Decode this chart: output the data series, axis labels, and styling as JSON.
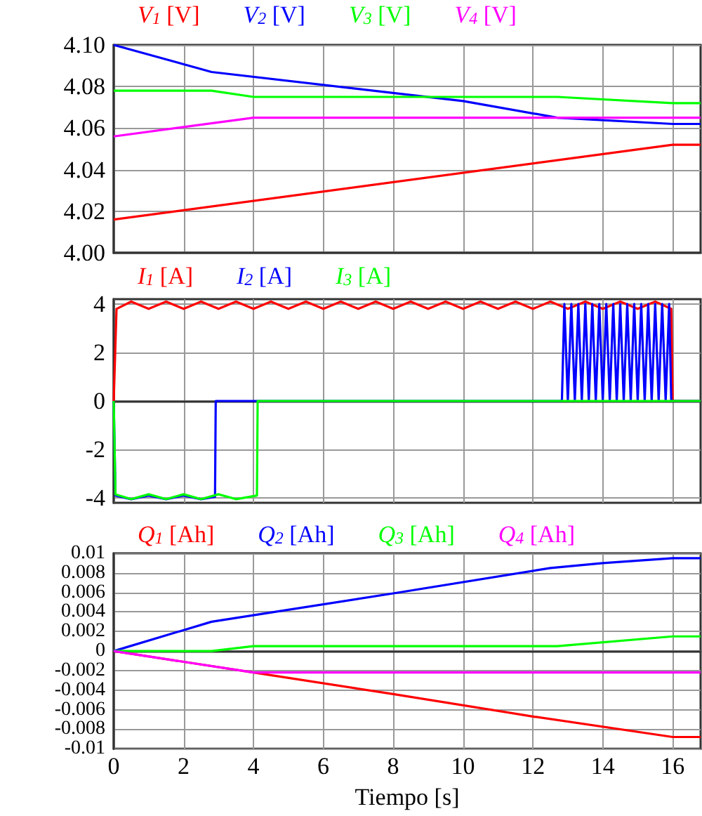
{
  "chart_data": [
    {
      "type": "line",
      "xlim": [
        0,
        16.8
      ],
      "xticks": [
        0,
        2,
        4,
        6,
        8,
        10,
        12,
        14,
        16
      ],
      "ylim": [
        4.0,
        4.1
      ],
      "yticks": [
        {
          "value": 4.0,
          "label": "4.00"
        },
        4.02,
        4.04,
        4.06,
        4.08,
        {
          "value": 4.1,
          "label": "4.10"
        }
      ],
      "grid": true,
      "legend": "top left",
      "tick_labels": "y",
      "series": [
        {
          "name": "V$_{1}$ [V]",
          "color": "#ff0000",
          "x": [
            0,
            16,
            16.8
          ],
          "values": [
            4.016,
            4.052,
            4.052
          ]
        },
        {
          "name": "V$_{2}$ [V]",
          "color": "#0000ff",
          "x": [
            0,
            2.8,
            10,
            12.7,
            16,
            16.8
          ],
          "values": [
            4.1,
            4.087,
            4.073,
            4.065,
            4.062,
            4.062
          ]
        },
        {
          "name": "V$_{3}$ [V]",
          "color": "#00ff00",
          "x": [
            0,
            2.8,
            4,
            12.7,
            16,
            16.8
          ],
          "values": [
            4.078,
            4.078,
            4.075,
            4.075,
            4.072,
            4.072
          ]
        },
        {
          "name": "V$_{4}$ [V]",
          "color": "#ff00ff",
          "x": [
            0,
            4,
            16.8
          ],
          "values": [
            4.056,
            4.065,
            4.065
          ]
        }
      ]
    },
    {
      "type": "line",
      "xlim": [
        0,
        16.8
      ],
      "xticks": [
        0,
        2,
        4,
        6,
        8,
        10,
        12,
        14,
        16
      ],
      "ylim": [
        -4.2,
        4.2
      ],
      "yticks": [
        -4,
        -2,
        0,
        2,
        4
      ],
      "grid": true,
      "legend": "top left",
      "tick_labels": "y",
      "series": [
        {
          "name": "I$_{1}$ [A]",
          "color": "#ff0000",
          "x": [
            0,
            0.08,
            0.5,
            1,
            1.5,
            2,
            2.5,
            3,
            3.5,
            4,
            4.5,
            5,
            5.5,
            6,
            6.5,
            7,
            7.5,
            8,
            8.5,
            9,
            9.5,
            10,
            10.5,
            11,
            11.5,
            12,
            12.5,
            13,
            13.5,
            14,
            14.5,
            15,
            15.5,
            15.96,
            16,
            16.8
          ],
          "values": [
            0,
            3.8,
            4.1,
            3.8,
            4.1,
            3.8,
            4.1,
            3.8,
            4.1,
            3.8,
            4.1,
            3.8,
            4.1,
            3.8,
            4.1,
            3.8,
            4.1,
            3.8,
            4.1,
            3.8,
            4.1,
            3.8,
            4.1,
            3.8,
            4.1,
            3.8,
            4.1,
            3.8,
            4.1,
            3.8,
            4.1,
            3.8,
            4.1,
            3.8,
            0,
            0
          ]
        },
        {
          "name": "I$_{2}$ [A]",
          "color": "#0000ff",
          "x": [
            0,
            0.05,
            0.5,
            1,
            1.5,
            2,
            2.5,
            2.9,
            2.92,
            12.83,
            12.9,
            13.0,
            13.1,
            13.2,
            13.3,
            13.4,
            13.5,
            13.6,
            13.7,
            13.8,
            13.9,
            14.0,
            14.1,
            14.2,
            14.3,
            14.4,
            14.5,
            14.6,
            14.7,
            14.8,
            14.9,
            15.0,
            15.1,
            15.2,
            15.3,
            15.4,
            15.5,
            15.6,
            15.7,
            15.8,
            15.9,
            15.96,
            16.8
          ],
          "values": [
            0,
            -3.9,
            -4.05,
            -3.9,
            -4.05,
            -3.9,
            -4.05,
            -3.95,
            0,
            0,
            4,
            0,
            4,
            0,
            4,
            0,
            4,
            0,
            4,
            0,
            4,
            0,
            4,
            0,
            4,
            0,
            4,
            0,
            4,
            0,
            4,
            0,
            4,
            0,
            4,
            0,
            4,
            0,
            4,
            0,
            4,
            0,
            0
          ]
        },
        {
          "name": "I$_{3}$ [A]",
          "color": "#00ff00",
          "x": [
            0,
            0.05,
            0.5,
            1,
            1.5,
            2,
            2.5,
            3,
            3.5,
            4.1,
            4.12,
            16.8
          ],
          "values": [
            0,
            -3.85,
            -4.05,
            -3.85,
            -4.05,
            -3.85,
            -4.05,
            -3.85,
            -4.05,
            -3.9,
            0,
            0
          ]
        }
      ]
    },
    {
      "type": "line",
      "xlim": [
        0,
        16.8
      ],
      "xticks": [
        0,
        2,
        4,
        6,
        8,
        10,
        12,
        14,
        16
      ],
      "ylim": [
        -0.01,
        0.01
      ],
      "yticks": [
        -0.01,
        -0.008,
        -0.006,
        -0.004,
        -0.002,
        0,
        0.002,
        0.004,
        0.006,
        0.008,
        0.01
      ],
      "grid": true,
      "legend": "top left",
      "xlabel": "Tiempo [s]",
      "series": [
        {
          "name": "Q$_{1}$ [Ah]",
          "color": "#ff0000",
          "x": [
            0,
            4,
            8,
            12,
            16,
            16.8
          ],
          "values": [
            0,
            -0.0022,
            -0.0044,
            -0.0067,
            -0.0088,
            -0.0088
          ]
        },
        {
          "name": "Q$_{2}$ [Ah]",
          "color": "#0000ff",
          "x": [
            0,
            2.8,
            8,
            12.5,
            14,
            16,
            16.8
          ],
          "values": [
            0,
            0.003,
            0.0059,
            0.0085,
            0.009,
            0.0095,
            0.0095
          ]
        },
        {
          "name": "Q$_{3}$ [Ah]",
          "color": "#00ff00",
          "x": [
            0,
            2.8,
            4,
            12.7,
            16,
            16.8
          ],
          "values": [
            0,
            0,
            0.0005,
            0.0005,
            0.0015,
            0.0015
          ]
        },
        {
          "name": "Q$_{4}$ [Ah]",
          "color": "#ff00ff",
          "x": [
            0,
            4,
            16.8
          ],
          "values": [
            0,
            -0.0022,
            -0.0022
          ]
        }
      ]
    }
  ]
}
